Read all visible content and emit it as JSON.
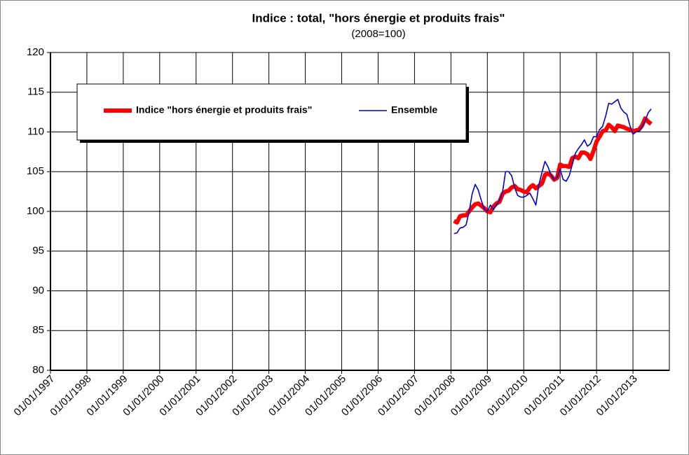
{
  "chart_data": {
    "type": "line",
    "title": "Indice : total, \"hors énergie et produits frais\"",
    "subtitle": "(2008=100)",
    "x": [
      "01/02/2008",
      "01/03/2008",
      "01/04/2008",
      "01/05/2008",
      "01/06/2008",
      "01/07/2008",
      "01/08/2008",
      "01/09/2008",
      "01/10/2008",
      "01/11/2008",
      "01/12/2008",
      "01/01/2009",
      "01/02/2009",
      "01/03/2009",
      "01/04/2009",
      "01/05/2009",
      "01/06/2009",
      "01/07/2009",
      "01/08/2009",
      "01/09/2009",
      "01/10/2009",
      "01/11/2009",
      "01/12/2009",
      "01/01/2010",
      "01/02/2010",
      "01/03/2010",
      "01/04/2010",
      "01/05/2010",
      "01/06/2010",
      "01/07/2010",
      "01/08/2010",
      "01/09/2010",
      "01/10/2010",
      "01/11/2010",
      "01/12/2010",
      "01/01/2011",
      "01/02/2011",
      "01/03/2011",
      "01/04/2011",
      "01/05/2011",
      "01/06/2011",
      "01/07/2011",
      "01/08/2011",
      "01/09/2011",
      "01/10/2011",
      "01/11/2011",
      "01/12/2011",
      "01/01/2012",
      "01/02/2012",
      "01/03/2012",
      "01/04/2012",
      "01/05/2012",
      "01/06/2012",
      "01/07/2012",
      "01/08/2012",
      "01/09/2012",
      "01/10/2012",
      "01/11/2012",
      "01/12/2012",
      "01/01/2013",
      "01/02/2013",
      "01/03/2013",
      "01/04/2013",
      "01/05/2013",
      "01/06/2013",
      "01/07/2013"
    ],
    "series": [
      {
        "name": "Indice \"hors énergie et produits frais\"",
        "color": "#ff0000",
        "width": 6,
        "values": [
          98.8,
          98.6,
          99.4,
          99.5,
          99.5,
          100.0,
          100.5,
          100.9,
          101.0,
          100.7,
          100.4,
          100.0,
          99.9,
          100.6,
          101.0,
          101.2,
          102.2,
          102.5,
          102.6,
          103.0,
          103.2,
          102.8,
          102.7,
          102.5,
          102.4,
          103.0,
          103.3,
          102.9,
          103.2,
          103.5,
          104.6,
          104.8,
          104.5,
          104.0,
          104.2,
          105.9,
          105.7,
          105.7,
          105.6,
          106.7,
          106.9,
          106.7,
          107.4,
          107.4,
          107.2,
          106.6,
          107.6,
          108.8,
          109.4,
          110.1,
          110.2,
          110.9,
          110.6,
          110.1,
          110.8,
          110.7,
          110.6,
          110.4,
          110.3,
          110.1,
          110.2,
          110.3,
          110.8,
          111.7,
          111.3,
          111.0
        ]
      },
      {
        "name": "Ensemble",
        "color": "#0000cc",
        "width": 1.6,
        "values": [
          97.2,
          97.3,
          97.9,
          98.0,
          98.3,
          100.0,
          102.2,
          103.4,
          102.7,
          101.4,
          100.3,
          100.0,
          100.8,
          100.2,
          100.8,
          101.4,
          102.4,
          105.0,
          105.0,
          104.5,
          103.0,
          102.0,
          101.8,
          101.8,
          102.0,
          102.3,
          101.6,
          100.8,
          103.4,
          104.9,
          106.3,
          105.6,
          104.6,
          104.0,
          104.3,
          105.3,
          104.0,
          103.8,
          104.5,
          105.9,
          107.3,
          107.9,
          108.4,
          109.0,
          108.2,
          108.5,
          109.4,
          109.4,
          110.3,
          110.7,
          112.0,
          113.6,
          113.5,
          113.8,
          114.1,
          113.0,
          112.5,
          112.2,
          110.8,
          109.7,
          110.0,
          110.1,
          110.6,
          111.4,
          112.4,
          112.9
        ]
      }
    ],
    "xlim": [
      "01/01/1997",
      "01/01/2014"
    ],
    "xticks": [
      "01/01/1997",
      "01/01/1998",
      "01/01/1999",
      "01/01/2000",
      "01/01/2001",
      "01/01/2002",
      "01/01/2003",
      "01/01/2004",
      "01/01/2005",
      "01/01/2006",
      "01/01/2007",
      "01/01/2008",
      "01/01/2009",
      "01/01/2010",
      "01/01/2011",
      "01/01/2012",
      "01/01/2013"
    ],
    "ylim": [
      80,
      120
    ],
    "yticks": [
      80,
      85,
      90,
      95,
      100,
      105,
      110,
      115,
      120
    ],
    "grid": true,
    "legend": "upper left"
  }
}
